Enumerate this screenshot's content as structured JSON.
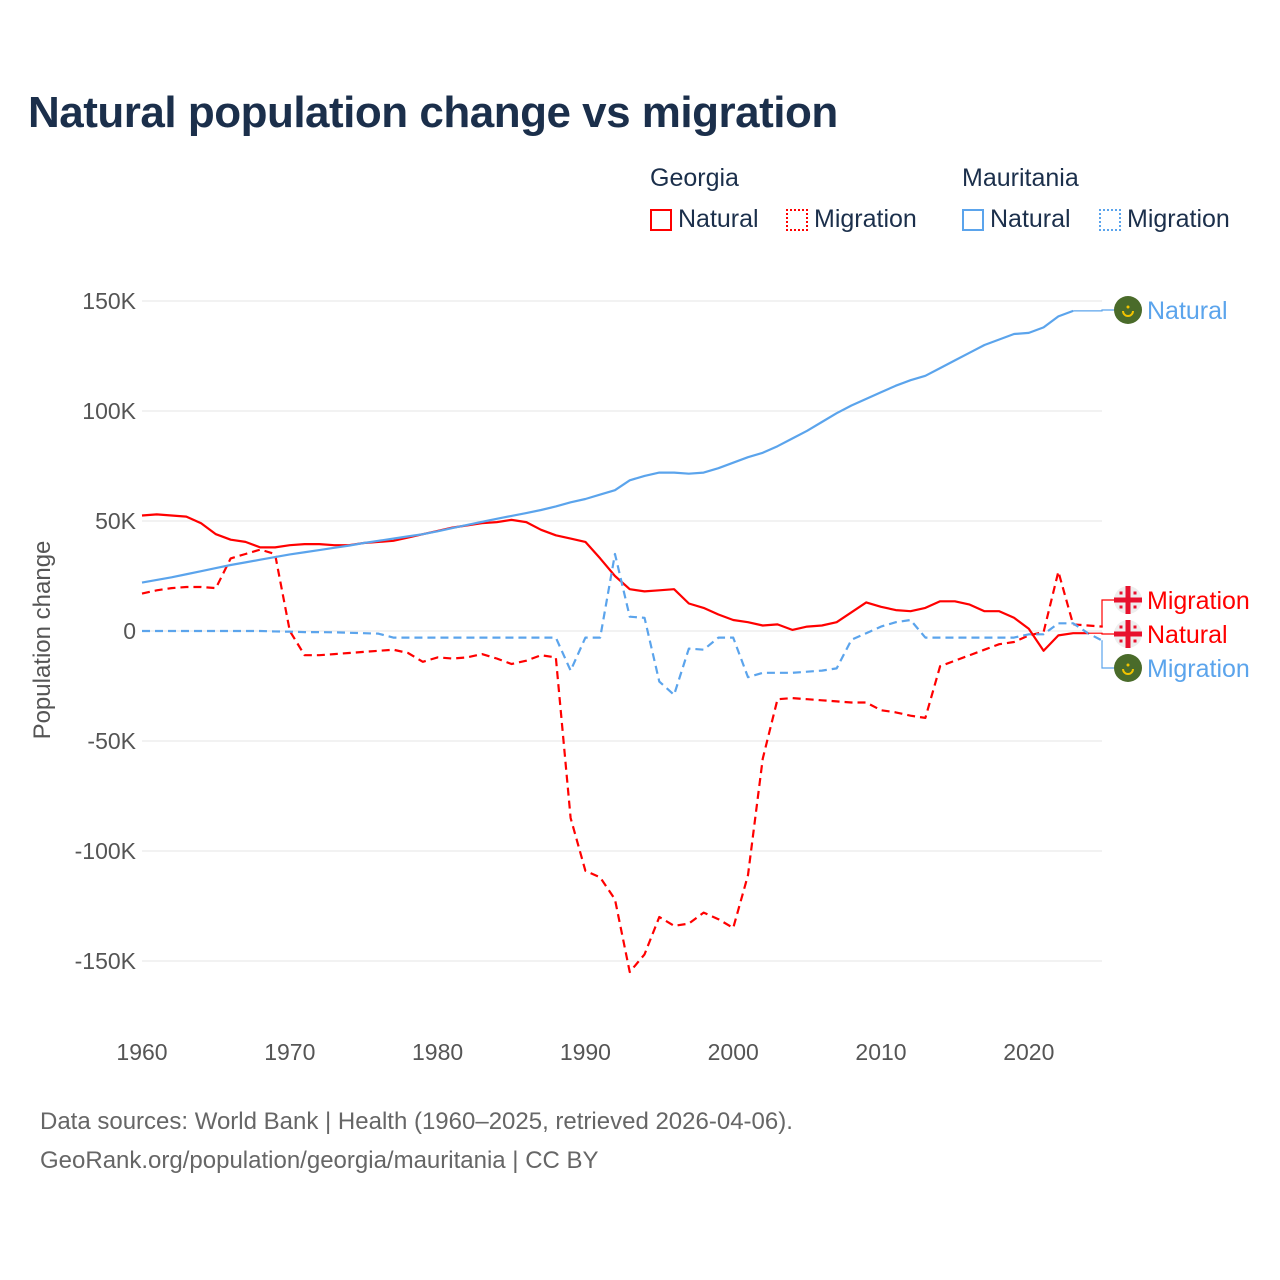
{
  "title": "Natural population change vs migration",
  "legend": {
    "groups": [
      {
        "name": "Georgia",
        "items": [
          {
            "label": "Natural",
            "style": "solid",
            "color": "#ff0000"
          },
          {
            "label": "Migration",
            "style": "dotted",
            "color": "#ff0000"
          }
        ]
      },
      {
        "name": "Mauritania",
        "items": [
          {
            "label": "Natural",
            "style": "solid",
            "color": "#5ba4ec"
          },
          {
            "label": "Migration",
            "style": "dotted",
            "color": "#5ba4ec"
          }
        ]
      }
    ]
  },
  "footer": {
    "line1": "Data sources: World Bank | Health (1960–2025, retrieved 2026-04-06).",
    "line2": "GeoRank.org/population/georgia/mauritania | CC BY"
  },
  "chart_data": {
    "type": "line",
    "title": "Natural population change vs migration",
    "xlabel": "",
    "ylabel": "Population change",
    "xlim": [
      1960,
      2025
    ],
    "ylim": [
      -175000,
      160000
    ],
    "xticks": [
      1960,
      1970,
      1980,
      1990,
      2000,
      2010,
      2020
    ],
    "yticks": [
      {
        "v": 150000,
        "label": "150K"
      },
      {
        "v": 100000,
        "label": "100K"
      },
      {
        "v": 50000,
        "label": "50K"
      },
      {
        "v": 0,
        "label": "0"
      },
      {
        "v": -50000,
        "label": "-50K"
      },
      {
        "v": -100000,
        "label": "-100K"
      },
      {
        "v": -150000,
        "label": "-150K"
      }
    ],
    "grid": true,
    "x_start": 1960,
    "series": [
      {
        "name": "Georgia Natural",
        "country": "Georgia",
        "end_label": "Natural",
        "color": "#ff0000",
        "dash": false,
        "flag": "georgia-flag",
        "values": [
          52.5,
          53,
          52.5,
          52,
          49,
          44,
          41.5,
          40.5,
          38,
          38,
          39,
          39.5,
          39.5,
          39,
          39,
          40,
          40.5,
          41,
          42.5,
          44,
          45.5,
          47,
          48,
          49,
          49.5,
          50.5,
          49.5,
          46,
          43.5,
          42,
          40.5,
          33,
          25,
          19,
          18,
          18.5,
          19,
          12.5,
          10.5,
          7.5,
          5,
          4,
          2.5,
          3,
          0.5,
          2,
          2.5,
          4,
          8.5,
          13,
          11,
          9.5,
          9,
          10.5,
          13.5,
          13.5,
          12,
          9,
          9,
          6,
          1,
          -9,
          -2,
          -1,
          -1
        ]
      },
      {
        "name": "Georgia Migration",
        "country": "Georgia",
        "end_label": "Migration",
        "color": "#ff0000",
        "dash": true,
        "flag": "georgia-flag",
        "values": [
          17,
          18.5,
          19.5,
          20,
          20,
          19.5,
          33,
          35,
          37,
          35,
          0,
          -11,
          -11,
          -10.5,
          -10,
          -9.5,
          -9,
          -8.5,
          -10,
          -14,
          -12,
          -12.5,
          -12,
          -10.5,
          -12.5,
          -15,
          -13.5,
          -11,
          -12,
          -85,
          -109,
          -112,
          -122,
          -155,
          -147,
          -130,
          -134,
          -133,
          -128,
          -131,
          -135,
          -111,
          -58,
          -31,
          -30.5,
          -31,
          -31.5,
          -32,
          -32.5,
          -32.5,
          -36,
          -37,
          -38.5,
          -39.5,
          -16,
          -13.5,
          -11,
          -8.5,
          -6,
          -5,
          -2,
          -0.5,
          27,
          3,
          2.5,
          2
        ]
      },
      {
        "name": "Mauritania Natural",
        "country": "Mauritania",
        "end_label": "Natural",
        "color": "#5ba4ec",
        "dash": false,
        "flag": "mauritania-flag",
        "values": [
          22,
          23.2,
          24.4,
          25.8,
          27.2,
          28.6,
          30,
          31.2,
          32.4,
          33.6,
          34.8,
          35.8,
          36.8,
          37.8,
          38.8,
          40,
          41,
          42,
          43,
          44,
          45.3,
          46.8,
          48.2,
          49.6,
          51,
          52.3,
          53.6,
          55,
          56.6,
          58.5,
          60,
          62,
          64,
          68.5,
          70.5,
          72,
          72,
          71.5,
          72,
          74,
          76.5,
          79,
          81,
          84,
          87.5,
          91,
          95,
          99,
          102.5,
          105.5,
          108.5,
          111.5,
          114,
          116,
          119.5,
          123,
          126.5,
          130,
          132.5,
          135,
          135.5,
          138,
          143,
          145.5
        ]
      },
      {
        "name": "Mauritania Migration",
        "country": "Mauritania",
        "end_label": "Migration",
        "color": "#5ba4ec",
        "dash": true,
        "flag": "mauritania-flag",
        "values": [
          0,
          0,
          0,
          0,
          0,
          0,
          0,
          0,
          0,
          -0.2,
          -0.3,
          -0.5,
          -0.5,
          -0.6,
          -0.8,
          -1,
          -1.2,
          -3,
          -3,
          -3,
          -3,
          -3,
          -3,
          -3,
          -3,
          -3,
          -3,
          -3,
          -3,
          -18,
          -3,
          -3,
          35,
          6.5,
          6,
          -23,
          -29,
          -8,
          -8.5,
          -3,
          -3,
          -21,
          -19,
          -19,
          -19,
          -18.5,
          -18,
          -17,
          -4,
          -1,
          2,
          4,
          5,
          -3,
          -3,
          -3,
          -3,
          -3,
          -3,
          -3,
          -1.5,
          -1.5,
          3.5,
          3.5,
          -1,
          -4.5
        ]
      }
    ],
    "value_unit": "thousands"
  }
}
